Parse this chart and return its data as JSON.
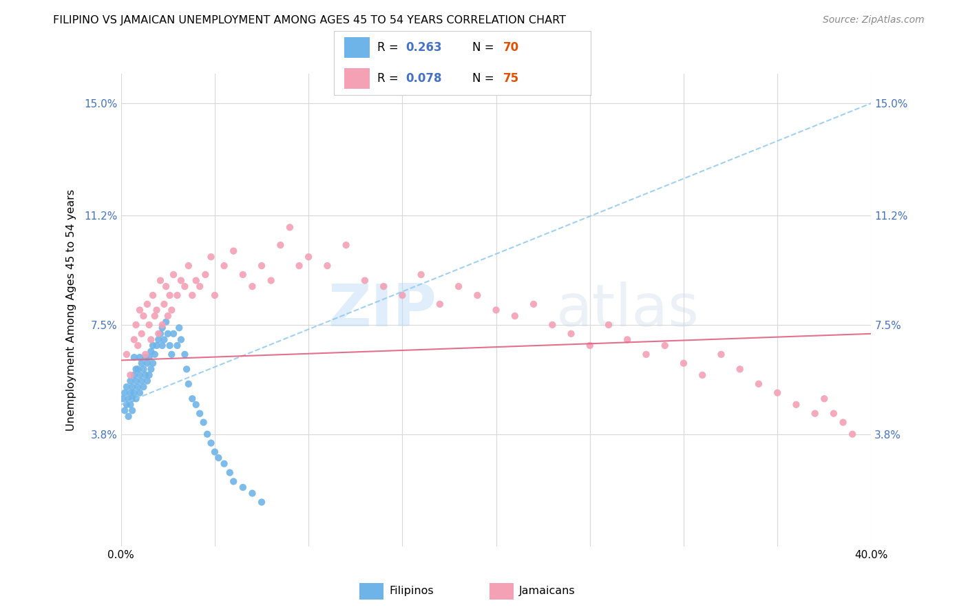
{
  "title": "FILIPINO VS JAMAICAN UNEMPLOYMENT AMONG AGES 45 TO 54 YEARS CORRELATION CHART",
  "source": "Source: ZipAtlas.com",
  "ylabel": "Unemployment Among Ages 45 to 54 years",
  "xlim": [
    0.0,
    0.4
  ],
  "ylim": [
    0.0,
    0.16
  ],
  "xticks": [
    0.0,
    0.05,
    0.1,
    0.15,
    0.2,
    0.25,
    0.3,
    0.35,
    0.4
  ],
  "xticklabels": [
    "0.0%",
    "",
    "",
    "",
    "",
    "",
    "",
    "",
    "40.0%"
  ],
  "ytick_positions": [
    0.038,
    0.075,
    0.112,
    0.15
  ],
  "ytick_labels": [
    "3.8%",
    "7.5%",
    "11.2%",
    "15.0%"
  ],
  "filipino_color": "#6eb4e8",
  "jamaican_color": "#f4a0b5",
  "background_color": "#ffffff",
  "grid_color": "#d8d8d8",
  "legend_label_1": "Filipinos",
  "legend_label_2": "Jamaicans",
  "filipino_scatter_x": [
    0.001,
    0.002,
    0.002,
    0.003,
    0.003,
    0.004,
    0.004,
    0.005,
    0.005,
    0.005,
    0.006,
    0.006,
    0.006,
    0.007,
    0.007,
    0.007,
    0.008,
    0.008,
    0.008,
    0.009,
    0.009,
    0.01,
    0.01,
    0.01,
    0.011,
    0.011,
    0.012,
    0.012,
    0.013,
    0.013,
    0.014,
    0.014,
    0.015,
    0.015,
    0.016,
    0.016,
    0.017,
    0.017,
    0.018,
    0.019,
    0.02,
    0.021,
    0.022,
    0.022,
    0.023,
    0.024,
    0.025,
    0.026,
    0.027,
    0.028,
    0.03,
    0.031,
    0.032,
    0.034,
    0.035,
    0.036,
    0.038,
    0.04,
    0.042,
    0.044,
    0.046,
    0.048,
    0.05,
    0.052,
    0.055,
    0.058,
    0.06,
    0.065,
    0.07,
    0.075
  ],
  "filipino_scatter_y": [
    0.05,
    0.046,
    0.052,
    0.048,
    0.054,
    0.05,
    0.044,
    0.048,
    0.052,
    0.056,
    0.046,
    0.05,
    0.054,
    0.052,
    0.058,
    0.064,
    0.05,
    0.056,
    0.06,
    0.054,
    0.06,
    0.052,
    0.058,
    0.064,
    0.056,
    0.062,
    0.054,
    0.06,
    0.058,
    0.064,
    0.056,
    0.062,
    0.058,
    0.064,
    0.06,
    0.066,
    0.062,
    0.068,
    0.065,
    0.068,
    0.07,
    0.072,
    0.068,
    0.074,
    0.07,
    0.076,
    0.072,
    0.068,
    0.065,
    0.072,
    0.068,
    0.074,
    0.07,
    0.065,
    0.06,
    0.055,
    0.05,
    0.048,
    0.045,
    0.042,
    0.038,
    0.035,
    0.032,
    0.03,
    0.028,
    0.025,
    0.022,
    0.02,
    0.018,
    0.015
  ],
  "jamaican_scatter_x": [
    0.003,
    0.005,
    0.007,
    0.008,
    0.009,
    0.01,
    0.011,
    0.012,
    0.013,
    0.014,
    0.015,
    0.016,
    0.017,
    0.018,
    0.019,
    0.02,
    0.021,
    0.022,
    0.023,
    0.024,
    0.025,
    0.026,
    0.027,
    0.028,
    0.03,
    0.032,
    0.034,
    0.036,
    0.038,
    0.04,
    0.042,
    0.045,
    0.048,
    0.05,
    0.055,
    0.06,
    0.065,
    0.07,
    0.075,
    0.08,
    0.085,
    0.09,
    0.095,
    0.1,
    0.11,
    0.12,
    0.13,
    0.14,
    0.15,
    0.16,
    0.17,
    0.18,
    0.19,
    0.2,
    0.21,
    0.22,
    0.23,
    0.24,
    0.25,
    0.26,
    0.27,
    0.28,
    0.29,
    0.3,
    0.31,
    0.32,
    0.33,
    0.34,
    0.35,
    0.36,
    0.37,
    0.375,
    0.38,
    0.385,
    0.39
  ],
  "jamaican_scatter_y": [
    0.065,
    0.058,
    0.07,
    0.075,
    0.068,
    0.08,
    0.072,
    0.078,
    0.065,
    0.082,
    0.075,
    0.07,
    0.085,
    0.078,
    0.08,
    0.072,
    0.09,
    0.075,
    0.082,
    0.088,
    0.078,
    0.085,
    0.08,
    0.092,
    0.085,
    0.09,
    0.088,
    0.095,
    0.085,
    0.09,
    0.088,
    0.092,
    0.098,
    0.085,
    0.095,
    0.1,
    0.092,
    0.088,
    0.095,
    0.09,
    0.102,
    0.108,
    0.095,
    0.098,
    0.095,
    0.102,
    0.09,
    0.088,
    0.085,
    0.092,
    0.082,
    0.088,
    0.085,
    0.08,
    0.078,
    0.082,
    0.075,
    0.072,
    0.068,
    0.075,
    0.07,
    0.065,
    0.068,
    0.062,
    0.058,
    0.065,
    0.06,
    0.055,
    0.052,
    0.048,
    0.045,
    0.05,
    0.045,
    0.042,
    0.038
  ],
  "fil_trend_x": [
    0.0,
    0.4
  ],
  "fil_trend_y": [
    0.048,
    0.15
  ],
  "jam_trend_x": [
    0.0,
    0.4
  ],
  "jam_trend_y": [
    0.063,
    0.072
  ]
}
